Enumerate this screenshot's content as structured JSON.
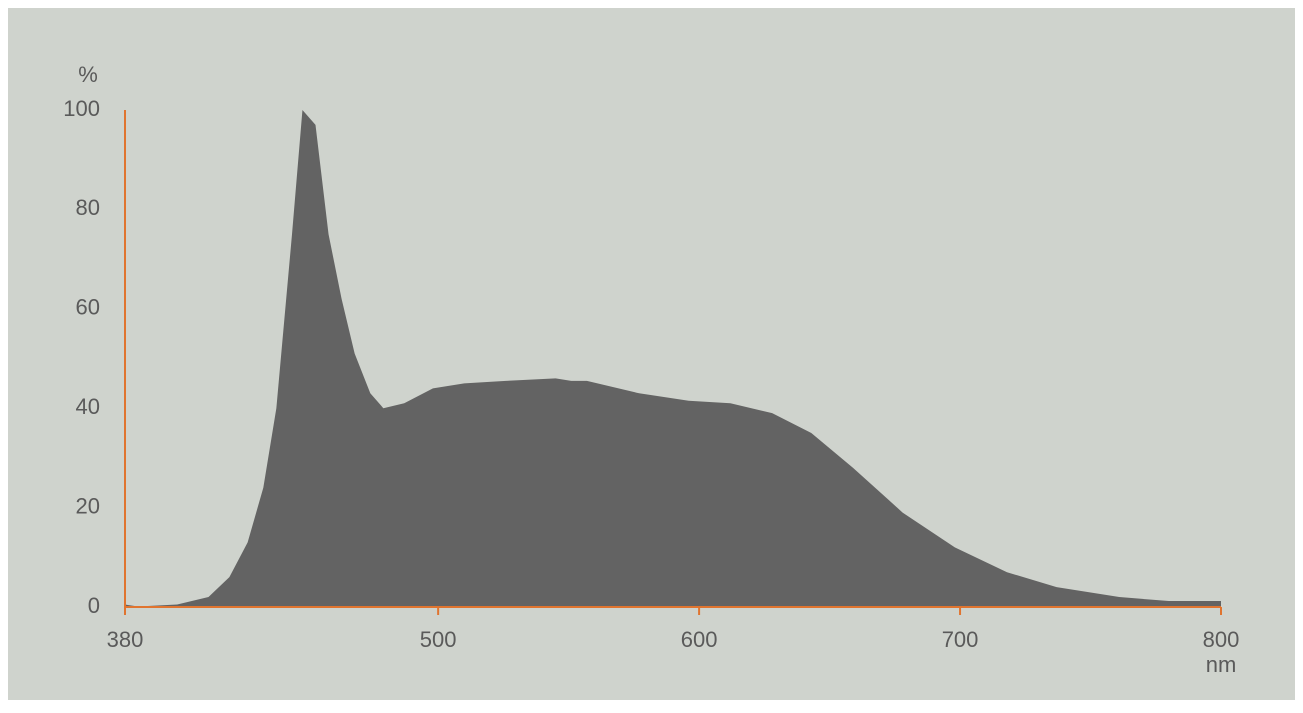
{
  "chart_data": {
    "type": "area",
    "y_label": "%",
    "x_label": "nm",
    "x": [
      380,
      385,
      400,
      412,
      420,
      427,
      433,
      438,
      444,
      448,
      453,
      458,
      463,
      468,
      474,
      479,
      487,
      498,
      510,
      526,
      545,
      551,
      557,
      577,
      596,
      612,
      628,
      643,
      659,
      678,
      698,
      718,
      737,
      761,
      780,
      800
    ],
    "values": [
      0.5,
      0.1,
      0.5,
      2,
      6,
      13,
      24,
      40,
      75,
      100,
      97,
      75,
      62,
      51,
      43,
      40,
      41,
      44,
      45,
      45.5,
      46,
      45.5,
      45.5,
      43,
      41.5,
      41,
      39,
      35,
      28,
      19,
      12,
      7,
      4,
      2,
      1.2,
      1.2
    ],
    "color": "#636363",
    "axis_color": "#e0742f",
    "xlim": [
      380,
      800
    ],
    "xticks": [
      380,
      500,
      600,
      700,
      800
    ],
    "ylim": [
      0,
      100
    ],
    "yticks": [
      0,
      20,
      40,
      60,
      80,
      100
    ]
  }
}
